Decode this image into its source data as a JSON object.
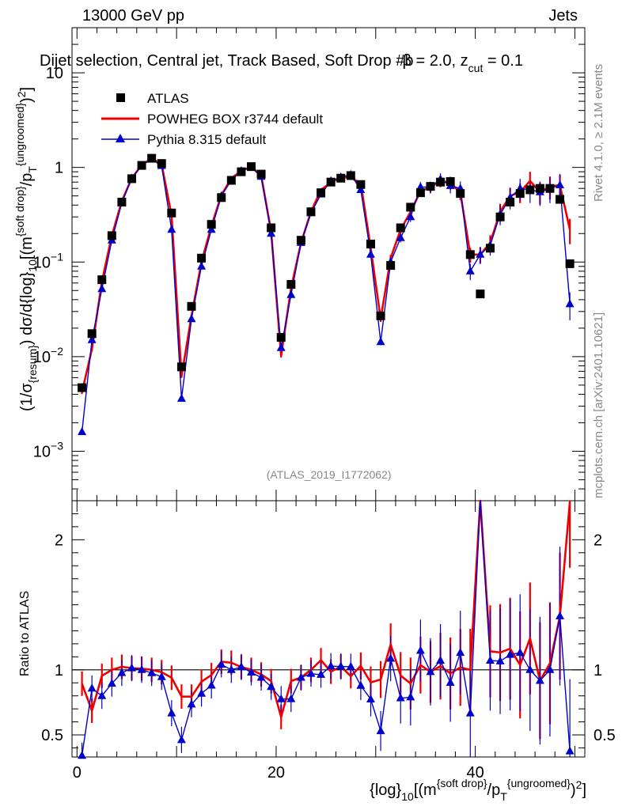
{
  "header": {
    "left": "13000 GeV pp",
    "right": "Jets"
  },
  "title": "Dijet selection, Central jet, Track Based, Soft Drop #b = 2.0, z_cut = 0.1",
  "title_parts": {
    "main": "Dijet selection, Central jet, Track Based, Soft Drop #b",
    "beta": "β = 2.0, z",
    "sub": "cut",
    "tail": " = 0.1"
  },
  "side_labels": {
    "rivet": "Rivet 4.1.0, ≥ 2.1M events",
    "mcplots": "mcplots.cern.ch [arXiv:2401.10621]"
  },
  "watermark": "(ATLAS_2019_I1772062)",
  "axes": {
    "ylabel_main": "(1/σ_{resum}) dσ/d{log}_10[(m^{soft drop}/p_T^{ungroomed})^2]",
    "ylabel_ratio": "Ratio to ATLAS",
    "xlabel": "{log}_10[(m^{soft drop}/p_T^{ungroomed})^2]"
  },
  "legend": [
    {
      "label": "ATLAS",
      "color": "#000000",
      "marker": "square"
    },
    {
      "label": "POWHEG BOX r3744 default",
      "color": "#ee0000",
      "marker": "line"
    },
    {
      "label": "Pythia 8.315 default",
      "color": "#0000cc",
      "marker": "triangle"
    }
  ],
  "chart_data": {
    "type": "scatter",
    "xlim": [
      -0.5,
      51
    ],
    "ylim_main": [
      0.0003,
      30
    ],
    "yscale_main": "log",
    "ylim_ratio": [
      0.33,
      2.3
    ],
    "x_ticks": [
      0,
      20,
      40
    ],
    "y_ticks_main": [
      "10^{-3}",
      "10^{-2}",
      "10^{-1}",
      "1",
      "10"
    ],
    "y_ticks_ratio": [
      "0.5",
      "1",
      "2"
    ],
    "x": [
      0.5,
      1.5,
      2.5,
      3.5,
      4.5,
      5.5,
      6.5,
      7.5,
      8.5,
      9.5,
      10.5,
      11.5,
      12.5,
      13.5,
      14.5,
      15.5,
      16.5,
      17.5,
      18.5,
      19.5,
      20.5,
      21.5,
      22.5,
      23.5,
      24.5,
      25.5,
      26.5,
      27.5,
      28.5,
      29.5,
      30.5,
      31.5,
      32.5,
      33.5,
      34.5,
      35.5,
      36.5,
      37.5,
      38.5,
      39.5,
      40.5,
      41.5,
      42.5,
      43.5,
      44.5,
      45.5,
      46.5,
      47.5,
      48.5,
      49.5
    ],
    "series": [
      {
        "name": "ATLAS",
        "color": "#000000",
        "values": [
          0.0047,
          0.0175,
          0.065,
          0.19,
          0.43,
          0.76,
          1.05,
          1.25,
          1.1,
          0.33,
          0.0078,
          0.034,
          0.11,
          0.25,
          0.48,
          0.73,
          0.9,
          1.02,
          0.85,
          0.23,
          0.016,
          0.058,
          0.17,
          0.34,
          0.54,
          0.7,
          0.77,
          0.82,
          0.66,
          0.155,
          0.027,
          0.092,
          0.23,
          0.38,
          0.54,
          0.63,
          0.7,
          0.71,
          0.53,
          0.12,
          0.046,
          0.14,
          0.3,
          0.43,
          0.53,
          0.58,
          0.6,
          0.6,
          0.46,
          0.096
        ]
      },
      {
        "name": "POWHEG BOX r3744 default",
        "color": "#ee0000",
        "values": [
          0.0042,
          0.012,
          0.062,
          0.19,
          0.44,
          0.77,
          1.06,
          1.25,
          1.08,
          0.31,
          0.0062,
          0.027,
          0.1,
          0.24,
          0.51,
          0.77,
          0.92,
          1.02,
          0.82,
          0.21,
          0.0102,
          0.053,
          0.16,
          0.34,
          0.58,
          0.69,
          0.79,
          0.78,
          0.68,
          0.14,
          0.025,
          0.11,
          0.22,
          0.34,
          0.56,
          0.62,
          0.72,
          0.69,
          0.54,
          0.12,
          0.12,
          0.16,
          0.34,
          0.5,
          0.55,
          0.72,
          0.55,
          0.63,
          0.65,
          0.22
        ]
      },
      {
        "name": "Pythia 8.315 default",
        "color": "#0000cc",
        "values": [
          0.0016,
          0.015,
          0.052,
          0.17,
          0.42,
          0.77,
          1.05,
          1.22,
          1.04,
          0.22,
          0.0036,
          0.025,
          0.09,
          0.22,
          0.5,
          0.73,
          0.92,
          1.0,
          0.8,
          0.2,
          0.0124,
          0.045,
          0.16,
          0.33,
          0.52,
          0.72,
          0.79,
          0.84,
          0.58,
          0.12,
          0.0143,
          0.1,
          0.18,
          0.3,
          0.62,
          0.62,
          0.75,
          0.64,
          0.6,
          0.08,
          0.12,
          0.15,
          0.32,
          0.48,
          0.6,
          0.58,
          0.55,
          0.6,
          0.65,
          0.036
        ]
      }
    ]
  }
}
